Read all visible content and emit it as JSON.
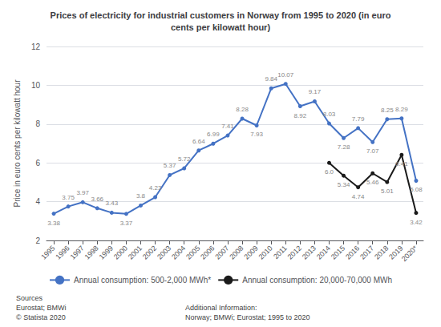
{
  "chart_data": {
    "type": "line",
    "title": "Prices of electricity for industrial customers in Norway from 1995 to 2020 (in euro\ncents per kilowatt hour)",
    "ylabel": "Price in euro cents per kilowatt hour",
    "categories": [
      "1995",
      "1996",
      "1997",
      "1998",
      "1999",
      "2000",
      "2001",
      "2002",
      "2003",
      "2004",
      "2005",
      "2006",
      "2007",
      "2008",
      "2009",
      "2010",
      "2011",
      "2012",
      "2013",
      "2014",
      "2015",
      "2016",
      "2017",
      "2018",
      "2019",
      "2020*"
    ],
    "series": [
      {
        "name": "Annual consumption: 500-2,000 MWh*",
        "color": "#4472C4",
        "marker": "circle",
        "values": [
          3.38,
          3.75,
          3.97,
          3.66,
          3.43,
          3.37,
          3.8,
          4.23,
          5.37,
          5.72,
          6.64,
          6.99,
          7.41,
          8.28,
          7.93,
          9.84,
          10.07,
          8.92,
          9.17,
          8.03,
          7.28,
          7.79,
          7.07,
          8.25,
          8.29,
          5.08
        ]
      },
      {
        "name": "Annual consumption: 20,000-70,000 MWh",
        "color": "#1a1a1a",
        "marker": "circle",
        "values": [
          null,
          null,
          null,
          null,
          null,
          null,
          null,
          null,
          null,
          null,
          null,
          null,
          null,
          null,
          null,
          null,
          null,
          null,
          null,
          6.0,
          5.34,
          4.74,
          5.46,
          5.01,
          6.41,
          3.42
        ],
        "value_labels": [
          null,
          null,
          null,
          null,
          null,
          null,
          null,
          null,
          null,
          null,
          null,
          null,
          null,
          null,
          null,
          null,
          null,
          null,
          null,
          "6.0",
          "5.34",
          "4.74",
          "5.46",
          "5.01",
          "6.41",
          "3.42"
        ]
      }
    ],
    "ylim": [
      2,
      12
    ],
    "yticks": [
      2,
      4,
      6,
      8,
      10,
      12
    ],
    "grid": true,
    "legend": "bottom",
    "data_labels": true,
    "annotations": [
      "Sources\nEurostat; BMWi\n© Statista 2020",
      "Additional Information:\nNorway; BMWi; Eurostat; 1995 to 2020"
    ]
  }
}
